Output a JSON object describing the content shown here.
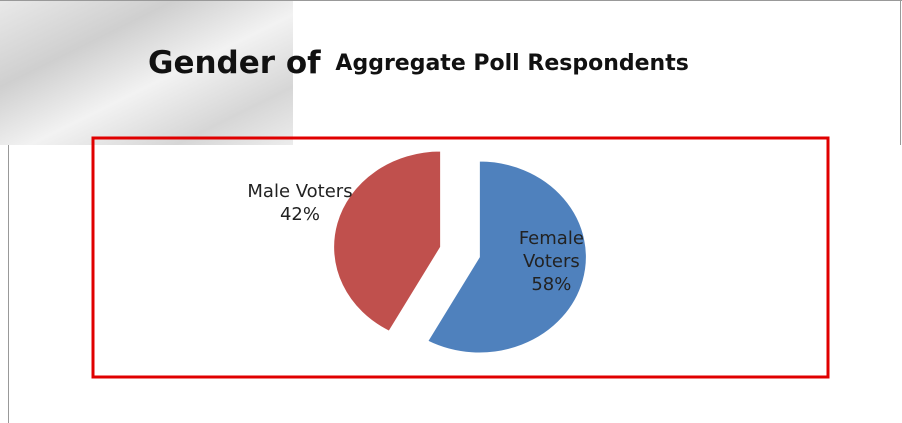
{
  "chart_data": {
    "type": "pie",
    "title": [
      "Gender of",
      "Aggregate Poll Respondents"
    ],
    "categories": [
      "Male Voters",
      "Female Voters"
    ],
    "values": [
      42,
      58
    ],
    "value_labels": [
      "42%",
      "58%"
    ],
    "colors": [
      "#c0504d",
      "#4f81bd"
    ],
    "exploded": true
  }
}
